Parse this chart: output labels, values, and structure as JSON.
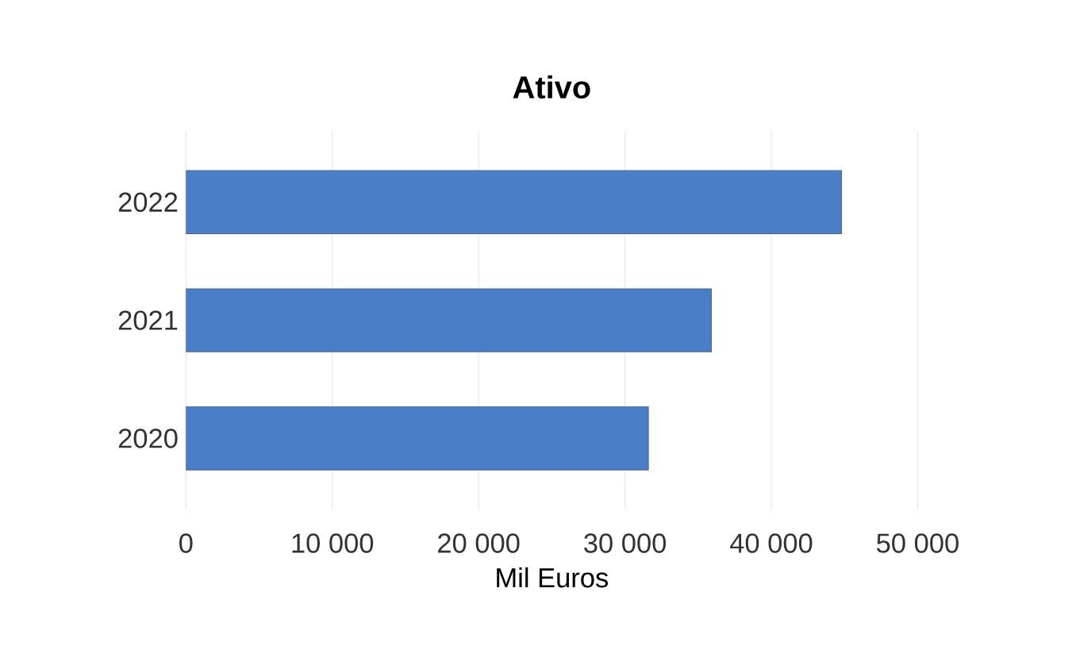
{
  "chart_data": {
    "type": "bar",
    "orientation": "horizontal",
    "title": "Ativo",
    "xlabel": "Mil Euros",
    "categories": [
      "2022",
      "2021",
      "2020"
    ],
    "values": [
      44800,
      35900,
      31600
    ],
    "color": "#4a7fc8",
    "xlim": [
      0,
      50000
    ],
    "xticks": [
      {
        "value": 0,
        "label": "0"
      },
      {
        "value": 10000,
        "label": "10 000"
      },
      {
        "value": 20000,
        "label": "20 000"
      },
      {
        "value": 30000,
        "label": "30 000"
      },
      {
        "value": 40000,
        "label": "40 000"
      },
      {
        "value": 50000,
        "label": "50 000"
      }
    ],
    "grid": "x"
  }
}
